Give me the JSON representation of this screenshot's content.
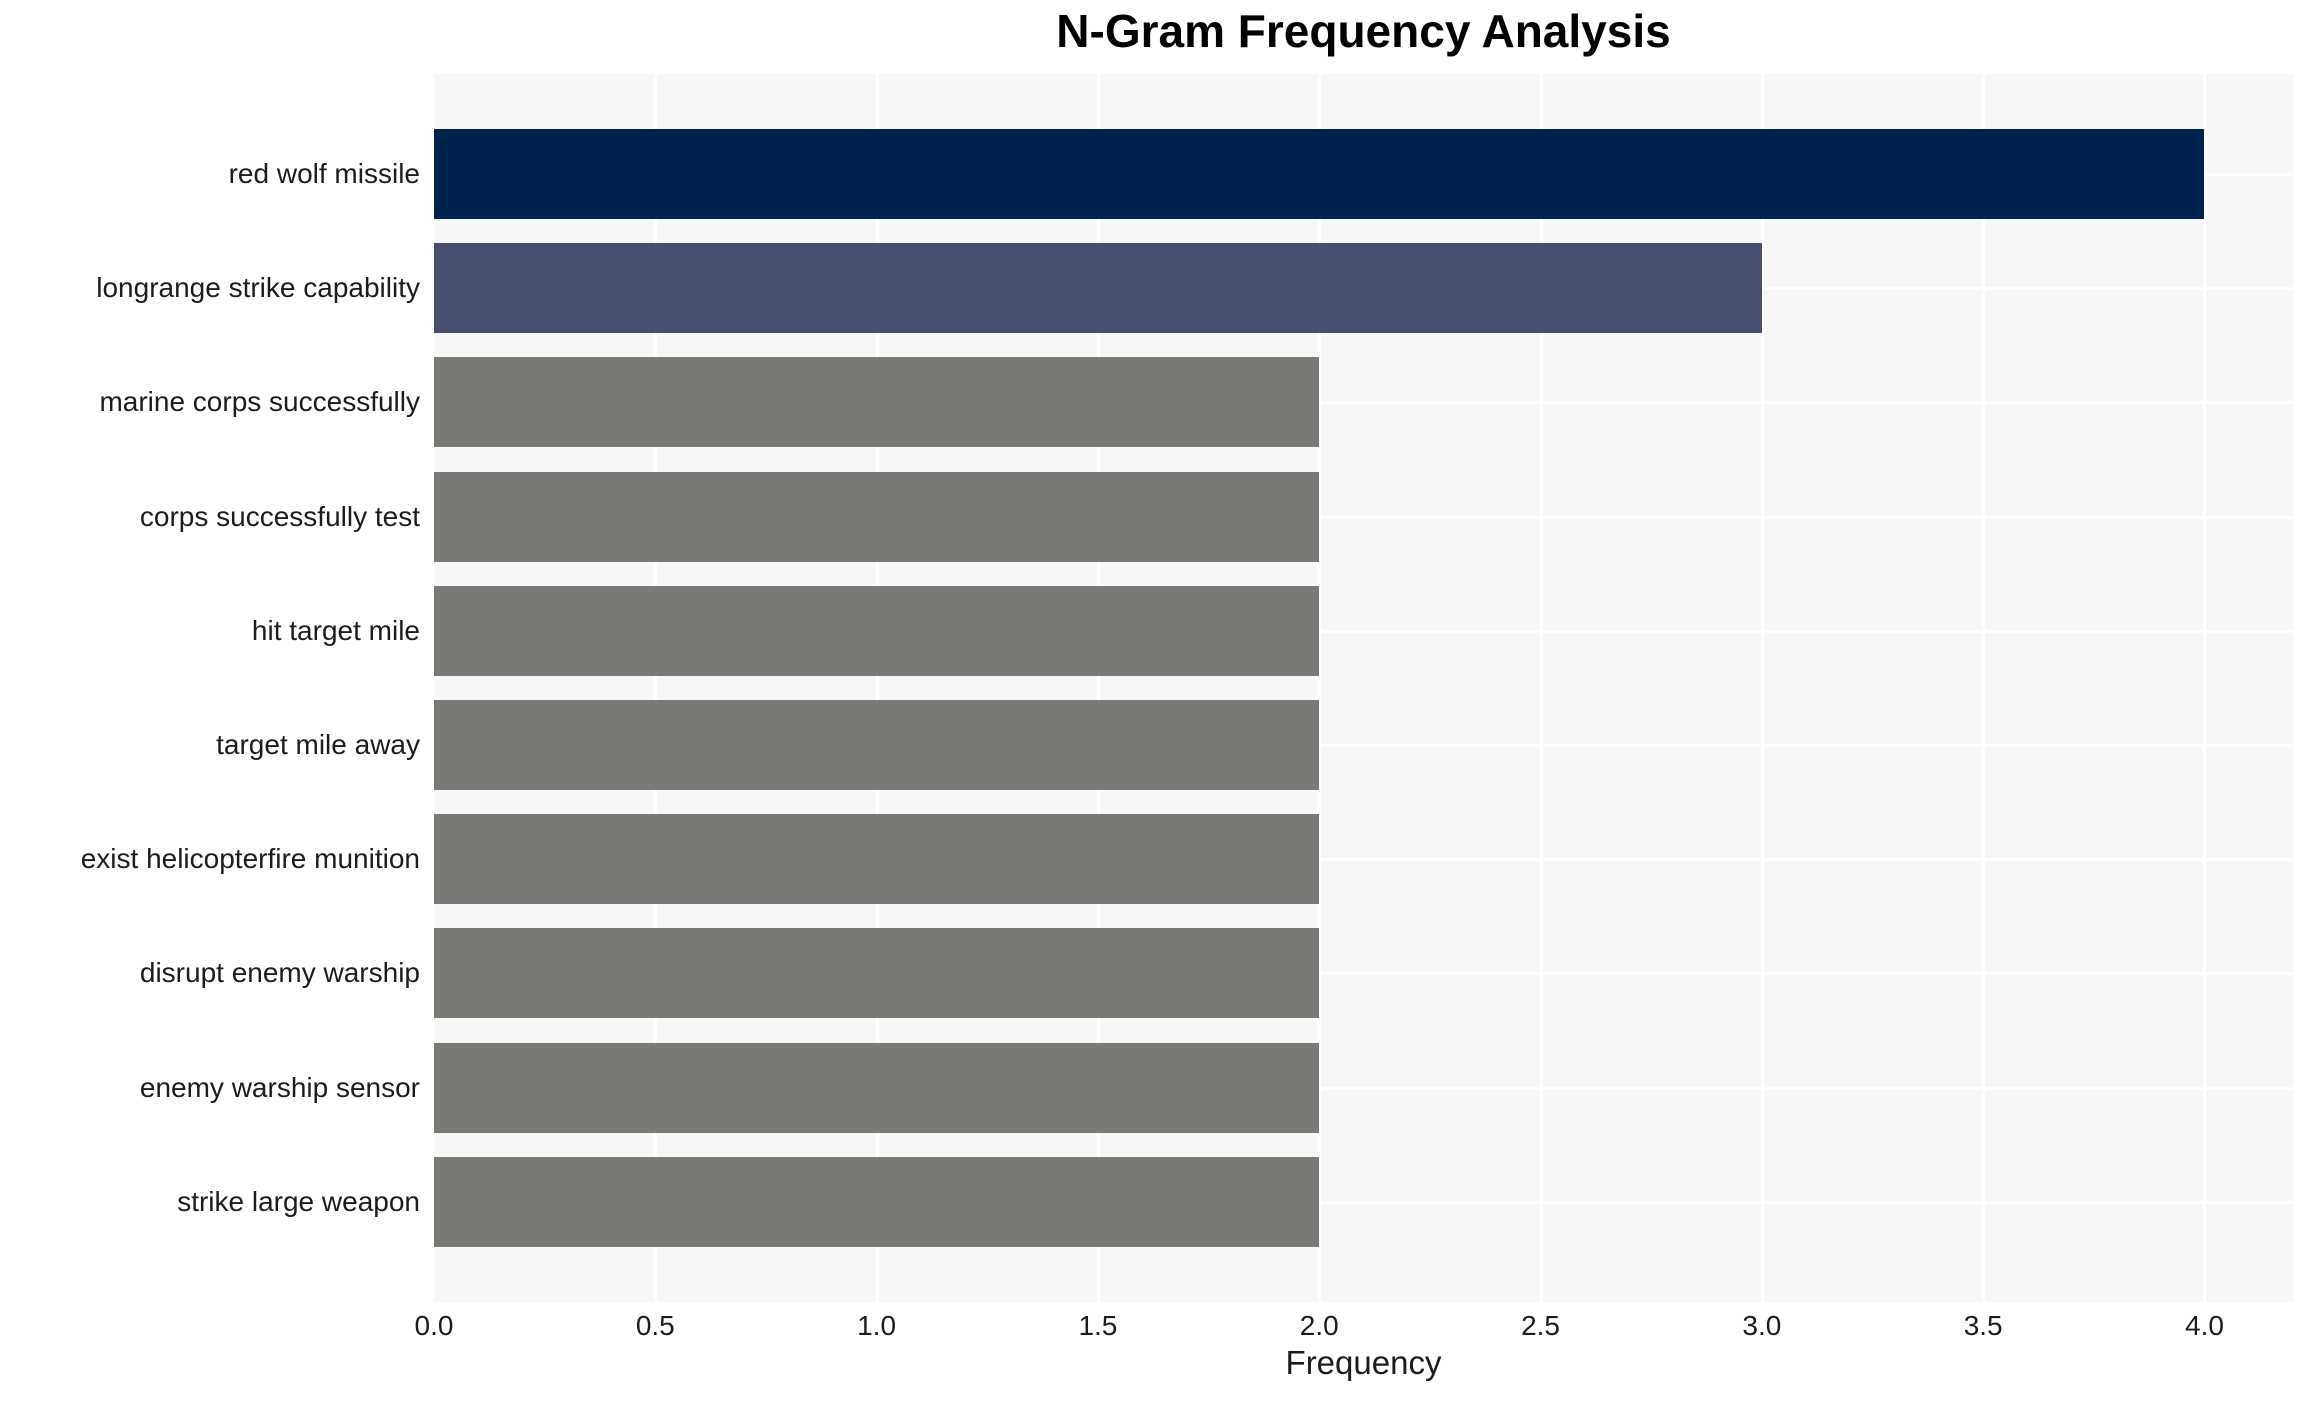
{
  "chart_data": {
    "type": "bar",
    "orientation": "horizontal",
    "title": "N-Gram Frequency Analysis",
    "xlabel": "Frequency",
    "ylabel": "",
    "categories": [
      "red wolf missile",
      "longrange strike capability",
      "marine corps successfully",
      "corps successfully test",
      "hit target mile",
      "target mile away",
      "exist helicopterfire munition",
      "disrupt enemy warship",
      "enemy warship sensor",
      "strike large weapon"
    ],
    "values": [
      4,
      3,
      2,
      2,
      2,
      2,
      2,
      2,
      2,
      2
    ],
    "bar_colors": [
      "#00234e",
      "#46506e",
      "#7a7976",
      "#7a7976",
      "#7a7976",
      "#7a7976",
      "#7a7976",
      "#7a7976",
      "#7a7976",
      "#7a7976"
    ],
    "xlim": [
      0,
      4.2
    ],
    "xticks": [
      0,
      0.5,
      1,
      1.5,
      2,
      2.5,
      3,
      3.5,
      4
    ],
    "xtick_labels": [
      "0.0",
      "0.5",
      "1.0",
      "1.5",
      "2.0",
      "2.5",
      "3.0",
      "3.5",
      "4.0"
    ],
    "grid": true,
    "legend": "none",
    "plot_bg_color": "#f7f7f7",
    "grid_color": "#ffffff",
    "text_color": "#1c1c1c"
  }
}
